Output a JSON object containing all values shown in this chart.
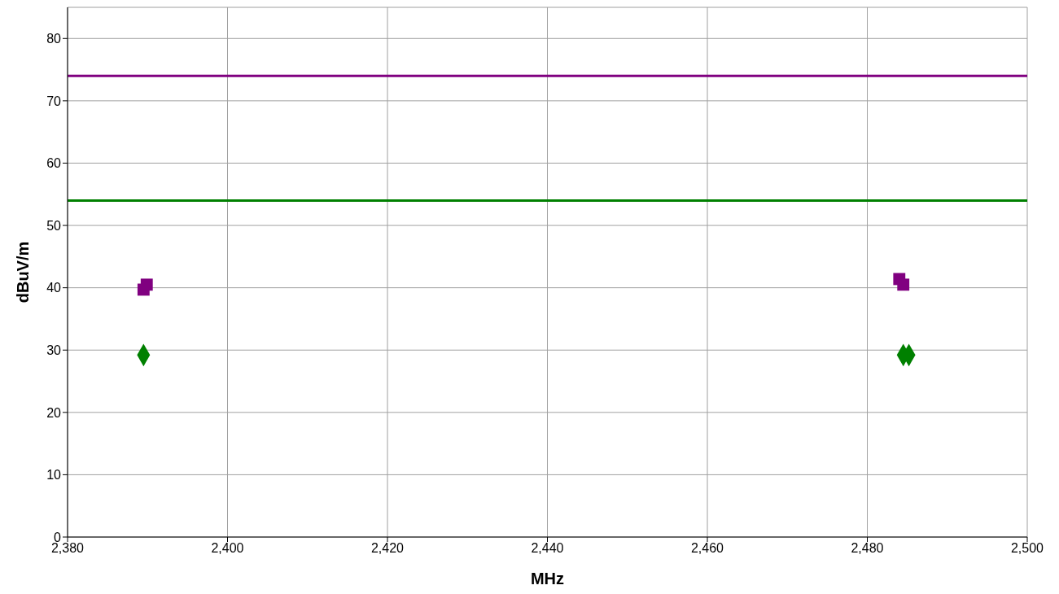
{
  "chart_data": {
    "type": "scatter",
    "xlabel": "MHz",
    "ylabel": "dBuV/m",
    "series": [
      {
        "color": "#800080",
        "marker": "square",
        "x": [
          2389.5,
          2389.9,
          2484.0,
          2484.5
        ],
        "values": [
          39.7,
          40.5,
          41.4,
          40.5
        ]
      },
      {
        "color": "#008000",
        "marker": "diamond",
        "x": [
          2389.5,
          2484.5,
          2485.2
        ],
        "values": [
          29.2,
          29.2,
          29.2
        ]
      }
    ],
    "ref_lines": [
      {
        "axis": "y",
        "value": 74,
        "color": "#800080"
      },
      {
        "axis": "y",
        "value": 54,
        "color": "#008000"
      }
    ],
    "xlim": [
      2380,
      2500
    ],
    "xticks": [
      {
        "value": 2380,
        "label": "2,380"
      },
      {
        "value": 2400,
        "label": "2,400"
      },
      {
        "value": 2420,
        "label": "2,420"
      },
      {
        "value": 2440,
        "label": "2,440"
      },
      {
        "value": 2460,
        "label": "2,460"
      },
      {
        "value": 2480,
        "label": "2,480"
      },
      {
        "value": 2500,
        "label": "2,500"
      }
    ],
    "ylim": [
      0,
      85
    ],
    "yticks": [
      0,
      10,
      20,
      30,
      40,
      50,
      60,
      70,
      80
    ],
    "grid": true
  }
}
